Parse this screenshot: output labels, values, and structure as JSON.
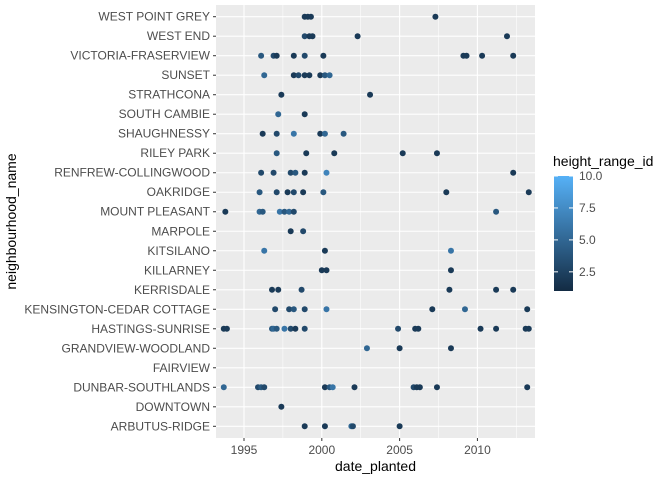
{
  "chart_data": {
    "type": "scatter",
    "xlabel": "date_planted",
    "ylabel": "neighbourhood_name",
    "xlim": [
      1993.2,
      2013.7
    ],
    "x_ticks": [
      1995,
      2000,
      2005,
      2010
    ],
    "grid": true,
    "legend_position": "right",
    "categories": [
      "ARBUTUS-RIDGE",
      "DOWNTOWN",
      "DUNBAR-SOUTHLANDS",
      "FAIRVIEW",
      "GRANDVIEW-WOODLAND",
      "HASTINGS-SUNRISE",
      "KENSINGTON-CEDAR COTTAGE",
      "KERRISDALE",
      "KILLARNEY",
      "KITSILANO",
      "MARPOLE",
      "MOUNT PLEASANT",
      "OAKRIDGE",
      "RENFREW-COLLINGWOOD",
      "RILEY PARK",
      "SHAUGHNESSY",
      "SOUTH CAMBIE",
      "STRATHCONA",
      "SUNSET",
      "VICTORIA-FRASERVIEW",
      "WEST END",
      "WEST POINT GREY"
    ],
    "color_scale": {
      "title": "height_range_id",
      "min": 1,
      "max": 10,
      "low_color": "#132b43",
      "high_color": "#56b1f7",
      "ticks": [
        2.5,
        5.0,
        7.5,
        10.0
      ],
      "tick_labels": [
        "2.5",
        "5.0",
        "7.5",
        "10.0"
      ]
    },
    "points": [
      {
        "y": "ARBUTUS-RIDGE",
        "x": 1998.9,
        "c": 2
      },
      {
        "y": "ARBUTUS-RIDGE",
        "x": 2000.2,
        "c": 2
      },
      {
        "y": "ARBUTUS-RIDGE",
        "x": 2001.9,
        "c": 5
      },
      {
        "y": "ARBUTUS-RIDGE",
        "x": 2002.0,
        "c": 3
      },
      {
        "y": "ARBUTUS-RIDGE",
        "x": 2005.0,
        "c": 2
      },
      {
        "y": "DOWNTOWN",
        "x": 1997.4,
        "c": 2
      },
      {
        "y": "DUNBAR-SOUTHLANDS",
        "x": 1993.7,
        "c": 5
      },
      {
        "y": "DUNBAR-SOUTHLANDS",
        "x": 1995.9,
        "c": 3
      },
      {
        "y": "DUNBAR-SOUTHLANDS",
        "x": 1996.1,
        "c": 4
      },
      {
        "y": "DUNBAR-SOUTHLANDS",
        "x": 1996.3,
        "c": 3
      },
      {
        "y": "DUNBAR-SOUTHLANDS",
        "x": 2000.2,
        "c": 2
      },
      {
        "y": "DUNBAR-SOUTHLANDS",
        "x": 2000.5,
        "c": 4
      },
      {
        "y": "DUNBAR-SOUTHLANDS",
        "x": 2000.7,
        "c": 6
      },
      {
        "y": "DUNBAR-SOUTHLANDS",
        "x": 2002.1,
        "c": 2
      },
      {
        "y": "DUNBAR-SOUTHLANDS",
        "x": 2005.9,
        "c": 3
      },
      {
        "y": "DUNBAR-SOUTHLANDS",
        "x": 2006.1,
        "c": 2
      },
      {
        "y": "DUNBAR-SOUTHLANDS",
        "x": 2006.3,
        "c": 2
      },
      {
        "y": "DUNBAR-SOUTHLANDS",
        "x": 2007.4,
        "c": 2
      },
      {
        "y": "DUNBAR-SOUTHLANDS",
        "x": 2013.2,
        "c": 2
      },
      {
        "y": "GRANDVIEW-WOODLAND",
        "x": 2002.9,
        "c": 5
      },
      {
        "y": "GRANDVIEW-WOODLAND",
        "x": 2005.0,
        "c": 2
      },
      {
        "y": "GRANDVIEW-WOODLAND",
        "x": 2008.3,
        "c": 2
      },
      {
        "y": "HASTINGS-SUNRISE",
        "x": 1993.7,
        "c": 2
      },
      {
        "y": "HASTINGS-SUNRISE",
        "x": 1993.9,
        "c": 2
      },
      {
        "y": "HASTINGS-SUNRISE",
        "x": 1996.8,
        "c": 4
      },
      {
        "y": "HASTINGS-SUNRISE",
        "x": 1996.9,
        "c": 5
      },
      {
        "y": "HASTINGS-SUNRISE",
        "x": 1997.1,
        "c": 4
      },
      {
        "y": "HASTINGS-SUNRISE",
        "x": 1997.6,
        "c": 6
      },
      {
        "y": "HASTINGS-SUNRISE",
        "x": 1998.0,
        "c": 3
      },
      {
        "y": "HASTINGS-SUNRISE",
        "x": 1998.3,
        "c": 2
      },
      {
        "y": "HASTINGS-SUNRISE",
        "x": 1998.9,
        "c": 3
      },
      {
        "y": "HASTINGS-SUNRISE",
        "x": 2004.9,
        "c": 3
      },
      {
        "y": "HASTINGS-SUNRISE",
        "x": 2006.0,
        "c": 2
      },
      {
        "y": "HASTINGS-SUNRISE",
        "x": 2006.2,
        "c": 2
      },
      {
        "y": "HASTINGS-SUNRISE",
        "x": 2010.2,
        "c": 2
      },
      {
        "y": "HASTINGS-SUNRISE",
        "x": 2011.2,
        "c": 2
      },
      {
        "y": "HASTINGS-SUNRISE",
        "x": 2013.1,
        "c": 2
      },
      {
        "y": "HASTINGS-SUNRISE",
        "x": 2013.3,
        "c": 2
      },
      {
        "y": "KENSINGTON-CEDAR COTTAGE",
        "x": 1997.0,
        "c": 3
      },
      {
        "y": "KENSINGTON-CEDAR COTTAGE",
        "x": 1997.9,
        "c": 3
      },
      {
        "y": "KENSINGTON-CEDAR COTTAGE",
        "x": 1998.2,
        "c": 4
      },
      {
        "y": "KENSINGTON-CEDAR COTTAGE",
        "x": 1998.9,
        "c": 3
      },
      {
        "y": "KENSINGTON-CEDAR COTTAGE",
        "x": 2000.3,
        "c": 6
      },
      {
        "y": "KENSINGTON-CEDAR COTTAGE",
        "x": 2007.1,
        "c": 2
      },
      {
        "y": "KENSINGTON-CEDAR COTTAGE",
        "x": 2009.2,
        "c": 5
      },
      {
        "y": "KENSINGTON-CEDAR COTTAGE",
        "x": 2013.2,
        "c": 2
      },
      {
        "y": "KERRISDALE",
        "x": 1996.8,
        "c": 2
      },
      {
        "y": "KERRISDALE",
        "x": 1997.2,
        "c": 2
      },
      {
        "y": "KERRISDALE",
        "x": 1998.7,
        "c": 3
      },
      {
        "y": "KERRISDALE",
        "x": 2008.2,
        "c": 2
      },
      {
        "y": "KERRISDALE",
        "x": 2011.2,
        "c": 2
      },
      {
        "y": "KERRISDALE",
        "x": 2012.3,
        "c": 2
      },
      {
        "y": "KILLARNEY",
        "x": 2000.0,
        "c": 2
      },
      {
        "y": "KILLARNEY",
        "x": 2000.3,
        "c": 2
      },
      {
        "y": "KILLARNEY",
        "x": 2008.3,
        "c": 2
      },
      {
        "y": "KITSILANO",
        "x": 1996.3,
        "c": 6
      },
      {
        "y": "KITSILANO",
        "x": 2000.2,
        "c": 2
      },
      {
        "y": "KITSILANO",
        "x": 2008.3,
        "c": 6
      },
      {
        "y": "MARPOLE",
        "x": 1998.0,
        "c": 2
      },
      {
        "y": "MARPOLE",
        "x": 1998.8,
        "c": 3
      },
      {
        "y": "MOUNT PLEASANT",
        "x": 1993.8,
        "c": 2
      },
      {
        "y": "MOUNT PLEASANT",
        "x": 1996.0,
        "c": 5
      },
      {
        "y": "MOUNT PLEASANT",
        "x": 1996.2,
        "c": 4
      },
      {
        "y": "MOUNT PLEASANT",
        "x": 1997.3,
        "c": 6
      },
      {
        "y": "MOUNT PLEASANT",
        "x": 1997.6,
        "c": 4
      },
      {
        "y": "MOUNT PLEASANT",
        "x": 1997.9,
        "c": 5
      },
      {
        "y": "MOUNT PLEASANT",
        "x": 1998.2,
        "c": 3
      },
      {
        "y": "MOUNT PLEASANT",
        "x": 2011.2,
        "c": 4
      },
      {
        "y": "OAKRIDGE",
        "x": 1996.0,
        "c": 4
      },
      {
        "y": "OAKRIDGE",
        "x": 1997.1,
        "c": 3
      },
      {
        "y": "OAKRIDGE",
        "x": 1997.8,
        "c": 2
      },
      {
        "y": "OAKRIDGE",
        "x": 1998.2,
        "c": 3
      },
      {
        "y": "OAKRIDGE",
        "x": 1998.8,
        "c": 2
      },
      {
        "y": "OAKRIDGE",
        "x": 2000.1,
        "c": 4
      },
      {
        "y": "OAKRIDGE",
        "x": 2008.0,
        "c": 2
      },
      {
        "y": "OAKRIDGE",
        "x": 2013.3,
        "c": 2
      },
      {
        "y": "RENFREW-COLLINGWOOD",
        "x": 1996.1,
        "c": 3
      },
      {
        "y": "RENFREW-COLLINGWOOD",
        "x": 1996.9,
        "c": 3
      },
      {
        "y": "RENFREW-COLLINGWOOD",
        "x": 1998.0,
        "c": 3
      },
      {
        "y": "RENFREW-COLLINGWOOD",
        "x": 1998.3,
        "c": 4
      },
      {
        "y": "RENFREW-COLLINGWOOD",
        "x": 1998.9,
        "c": 2
      },
      {
        "y": "RENFREW-COLLINGWOOD",
        "x": 2000.3,
        "c": 7
      },
      {
        "y": "RENFREW-COLLINGWOOD",
        "x": 2012.3,
        "c": 2
      },
      {
        "y": "RILEY PARK",
        "x": 1997.1,
        "c": 4
      },
      {
        "y": "RILEY PARK",
        "x": 1999.0,
        "c": 2
      },
      {
        "y": "RILEY PARK",
        "x": 2000.8,
        "c": 2
      },
      {
        "y": "RILEY PARK",
        "x": 2005.2,
        "c": 2
      },
      {
        "y": "RILEY PARK",
        "x": 2007.4,
        "c": 2
      },
      {
        "y": "SHAUGHNESSY",
        "x": 1996.2,
        "c": 2
      },
      {
        "y": "SHAUGHNESSY",
        "x": 1997.1,
        "c": 3
      },
      {
        "y": "SHAUGHNESSY",
        "x": 1998.2,
        "c": 6
      },
      {
        "y": "SHAUGHNESSY",
        "x": 1999.9,
        "c": 2
      },
      {
        "y": "SHAUGHNESSY",
        "x": 2000.2,
        "c": 5
      },
      {
        "y": "SHAUGHNESSY",
        "x": 2001.4,
        "c": 4
      },
      {
        "y": "SOUTH CAMBIE",
        "x": 1997.2,
        "c": 5
      },
      {
        "y": "SOUTH CAMBIE",
        "x": 1998.9,
        "c": 2
      },
      {
        "y": "STRATHCONA",
        "x": 1997.4,
        "c": 2
      },
      {
        "y": "STRATHCONA",
        "x": 2003.1,
        "c": 2
      },
      {
        "y": "SUNSET",
        "x": 1996.3,
        "c": 5
      },
      {
        "y": "SUNSET",
        "x": 1998.2,
        "c": 2
      },
      {
        "y": "SUNSET",
        "x": 1998.5,
        "c": 3
      },
      {
        "y": "SUNSET",
        "x": 1998.9,
        "c": 2
      },
      {
        "y": "SUNSET",
        "x": 1999.2,
        "c": 2
      },
      {
        "y": "SUNSET",
        "x": 1999.9,
        "c": 2
      },
      {
        "y": "SUNSET",
        "x": 2000.2,
        "c": 4
      },
      {
        "y": "SUNSET",
        "x": 2000.5,
        "c": 5
      },
      {
        "y": "VICTORIA-FRASERVIEW",
        "x": 1996.1,
        "c": 4
      },
      {
        "y": "VICTORIA-FRASERVIEW",
        "x": 1996.9,
        "c": 3
      },
      {
        "y": "VICTORIA-FRASERVIEW",
        "x": 1997.1,
        "c": 2
      },
      {
        "y": "VICTORIA-FRASERVIEW",
        "x": 1998.2,
        "c": 2
      },
      {
        "y": "VICTORIA-FRASERVIEW",
        "x": 1998.9,
        "c": 3
      },
      {
        "y": "VICTORIA-FRASERVIEW",
        "x": 2000.1,
        "c": 2
      },
      {
        "y": "VICTORIA-FRASERVIEW",
        "x": 2009.1,
        "c": 2
      },
      {
        "y": "VICTORIA-FRASERVIEW",
        "x": 2009.3,
        "c": 2
      },
      {
        "y": "VICTORIA-FRASERVIEW",
        "x": 2010.3,
        "c": 2
      },
      {
        "y": "VICTORIA-FRASERVIEW",
        "x": 2012.3,
        "c": 2
      },
      {
        "y": "WEST END",
        "x": 1998.9,
        "c": 3
      },
      {
        "y": "WEST END",
        "x": 1999.2,
        "c": 2
      },
      {
        "y": "WEST END",
        "x": 1999.4,
        "c": 2
      },
      {
        "y": "WEST END",
        "x": 2002.3,
        "c": 2
      },
      {
        "y": "WEST END",
        "x": 2011.9,
        "c": 2
      },
      {
        "y": "WEST POINT GREY",
        "x": 1998.9,
        "c": 2
      },
      {
        "y": "WEST POINT GREY",
        "x": 1999.1,
        "c": 2
      },
      {
        "y": "WEST POINT GREY",
        "x": 1999.3,
        "c": 2
      },
      {
        "y": "WEST POINT GREY",
        "x": 2007.3,
        "c": 2
      }
    ]
  }
}
